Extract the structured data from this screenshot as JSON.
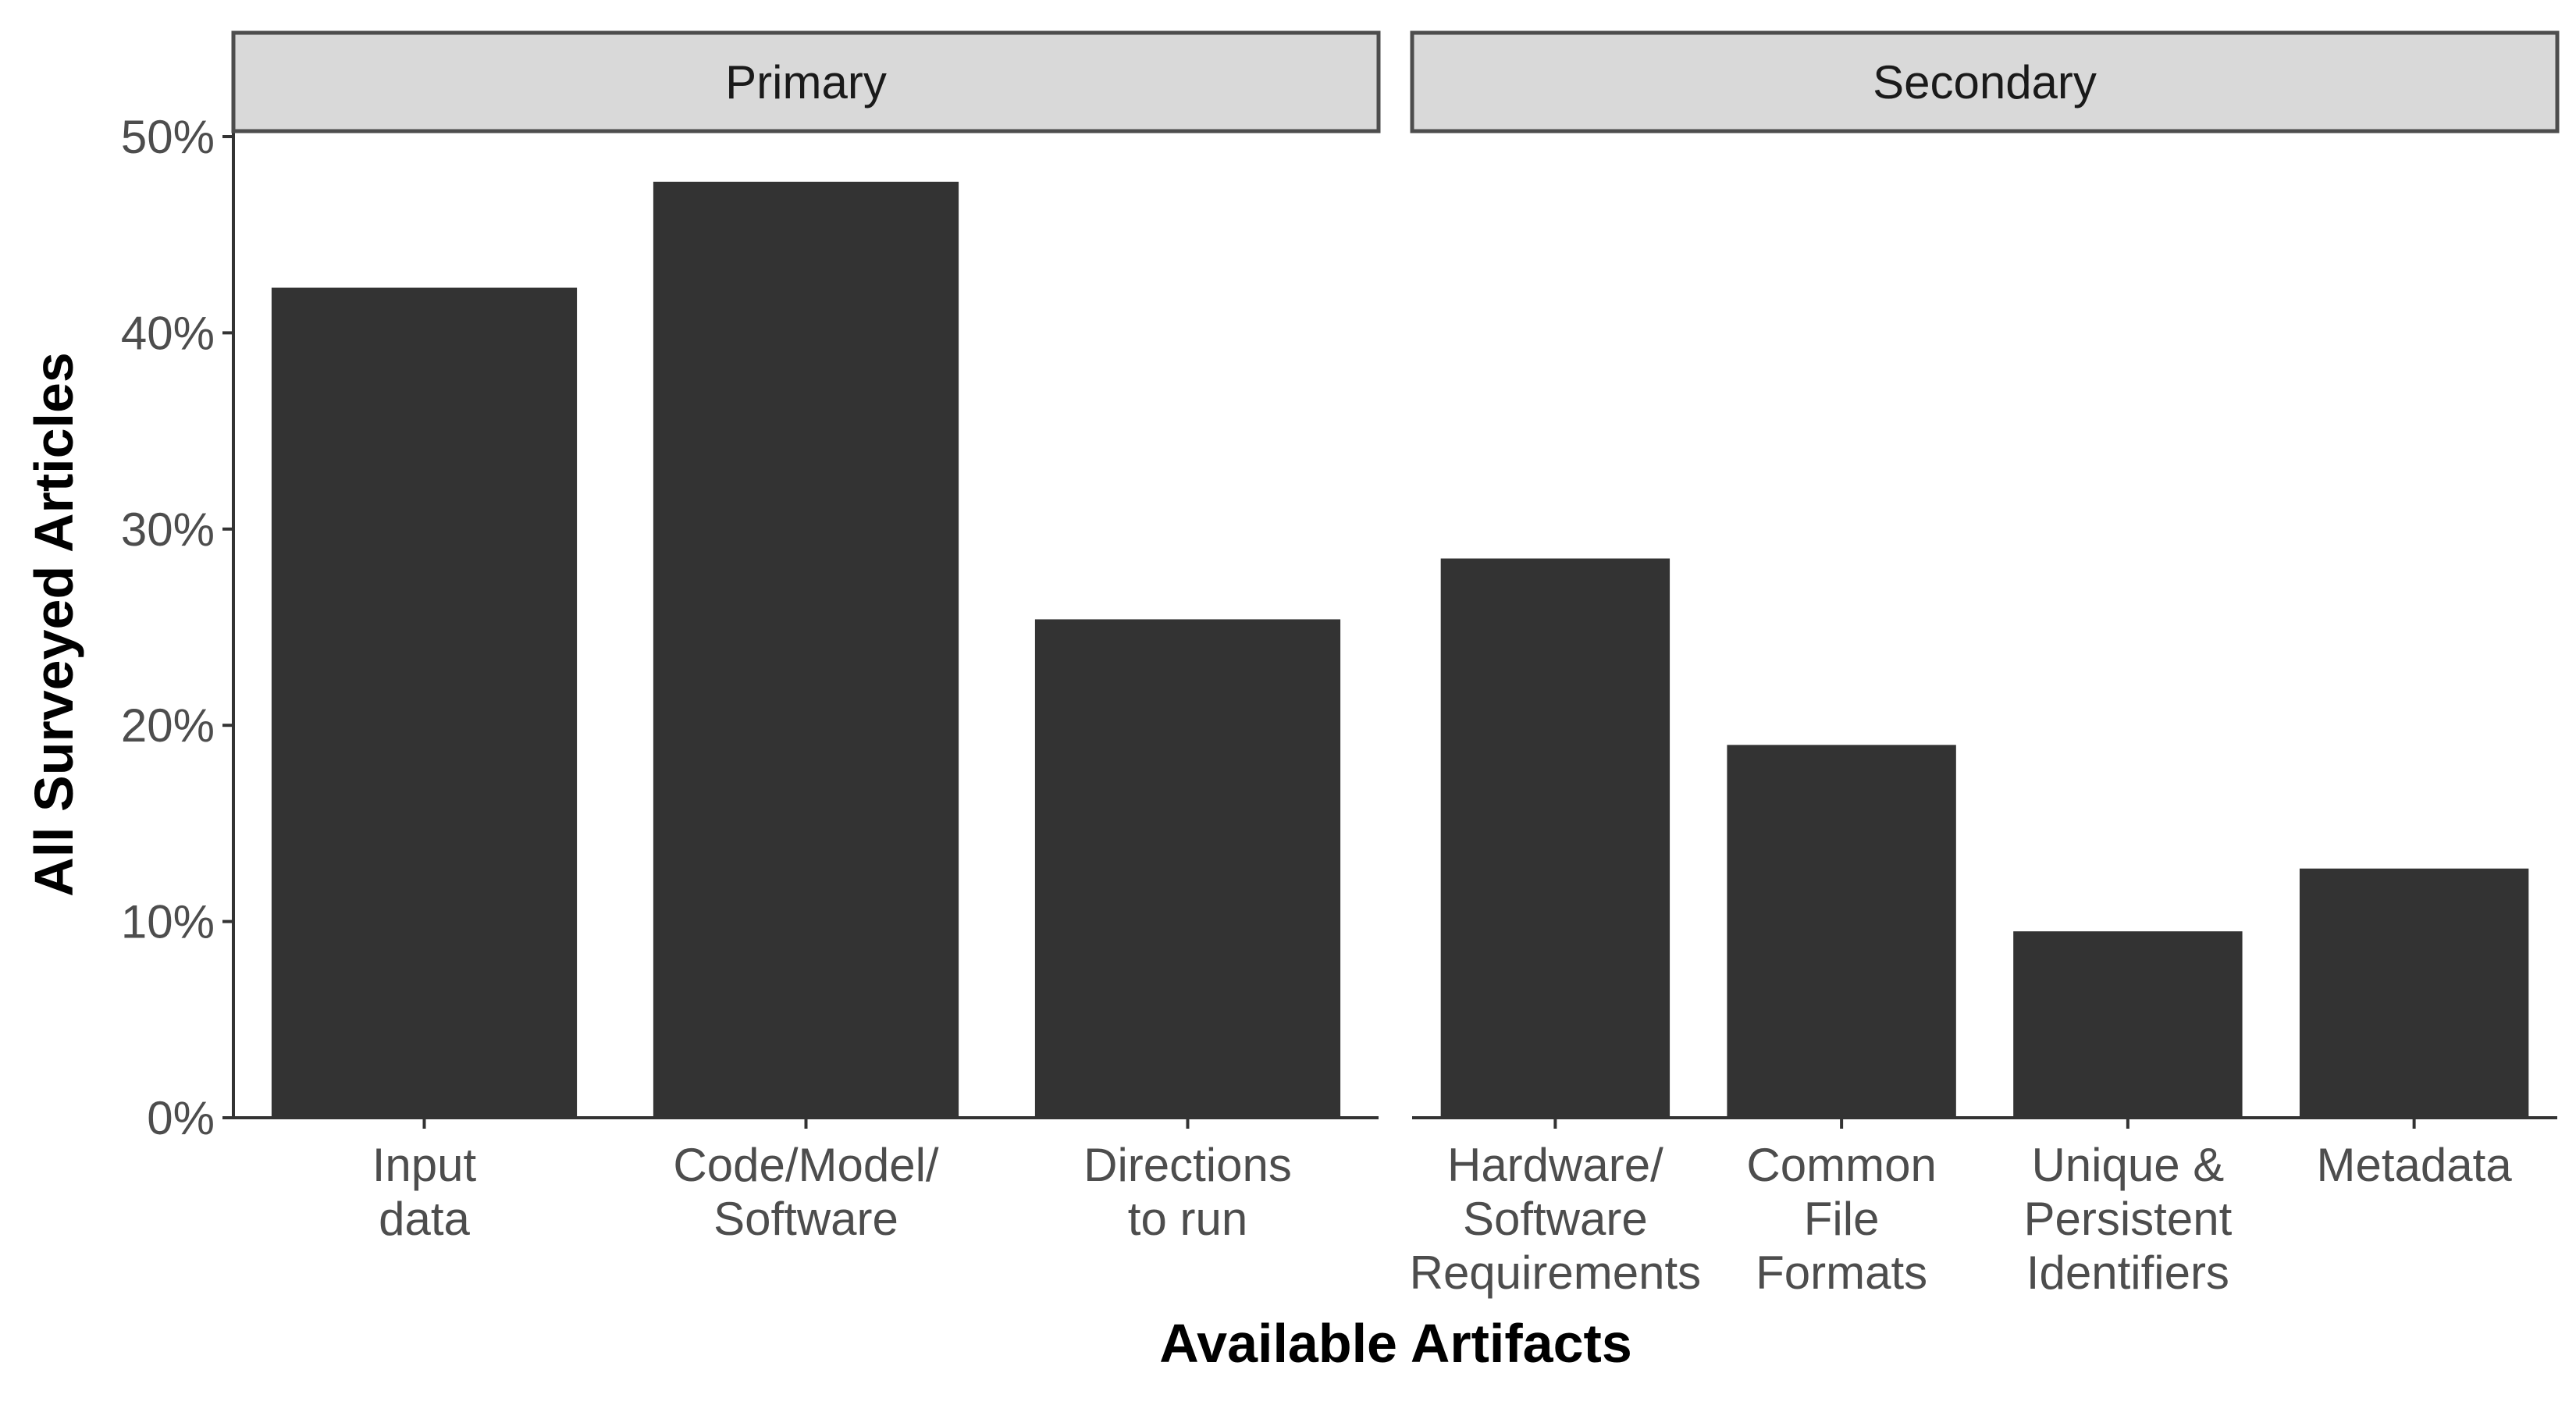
{
  "chart_data": {
    "type": "bar",
    "xlabel": "Available Artifacts",
    "ylabel": "All Surveyed Articles",
    "ylim": [
      0,
      0.5
    ],
    "yticks": [
      {
        "value": 0,
        "label": "0%"
      },
      {
        "value": 0.1,
        "label": "10%"
      },
      {
        "value": 0.2,
        "label": "20%"
      },
      {
        "value": 0.3,
        "label": "30%"
      },
      {
        "value": 0.4,
        "label": "40%"
      },
      {
        "value": 0.5,
        "label": "50%"
      }
    ],
    "grid": false,
    "bar_color": "#333333",
    "strip_color": "#d9d9d9",
    "panels": [
      {
        "name": "Primary",
        "categories": [
          [
            "Input",
            "data"
          ],
          [
            "Code/Model/",
            "Software"
          ],
          [
            "Directions",
            "to run"
          ]
        ],
        "values": [
          0.423,
          0.477,
          0.254
        ]
      },
      {
        "name": "Secondary",
        "categories": [
          [
            "Hardware/",
            "Software",
            "Requirements"
          ],
          [
            "Common",
            "File",
            "Formats"
          ],
          [
            "Unique &",
            "Persistent",
            "Identifiers"
          ],
          [
            "Metadata"
          ]
        ],
        "values": [
          0.285,
          0.19,
          0.095,
          0.127
        ]
      }
    ]
  }
}
